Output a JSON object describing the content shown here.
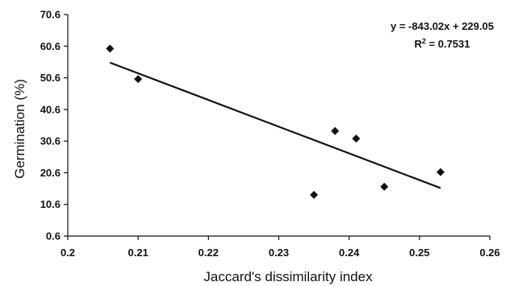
{
  "chart_data": {
    "type": "scatter",
    "title": "",
    "xlabel": "Jaccard's dissimilarity index",
    "ylabel": "Germination (%)",
    "xlim": [
      0.2,
      0.26
    ],
    "ylim": [
      0.6,
      70.6
    ],
    "x_ticks": [
      0.2,
      0.21,
      0.22,
      0.23,
      0.24,
      0.25,
      0.26
    ],
    "x_tick_labels": [
      "0.2",
      "0.21",
      "0.22",
      "0.23",
      "0.24",
      "0.25",
      "0.26"
    ],
    "y_ticks": [
      0.6,
      10.6,
      20.6,
      30.6,
      40.6,
      50.6,
      60.6,
      70.6
    ],
    "y_tick_labels": [
      "0.6",
      "10.6",
      "20.6",
      "30.6",
      "40.6",
      "50.6",
      "60.6",
      "70.6"
    ],
    "grid": false,
    "legend": "none",
    "marker": "diamond",
    "marker_color": "#111111",
    "points": [
      {
        "x": 0.206,
        "y": 59.8
      },
      {
        "x": 0.21,
        "y": 50.2
      },
      {
        "x": 0.235,
        "y": 13.6
      },
      {
        "x": 0.238,
        "y": 33.8
      },
      {
        "x": 0.241,
        "y": 31.4
      },
      {
        "x": 0.245,
        "y": 16.2
      },
      {
        "x": 0.253,
        "y": 20.8
      }
    ],
    "trendline": {
      "slope": -843.02,
      "intercept": 229.05,
      "x_range": [
        0.206,
        0.253
      ],
      "color": "#111111"
    },
    "annotations": {
      "equation": "y = -843.02x + 229.05",
      "r_squared_prefix": "R",
      "r_squared_exponent": "2",
      "r_squared_suffix": " = 0.7531"
    }
  }
}
